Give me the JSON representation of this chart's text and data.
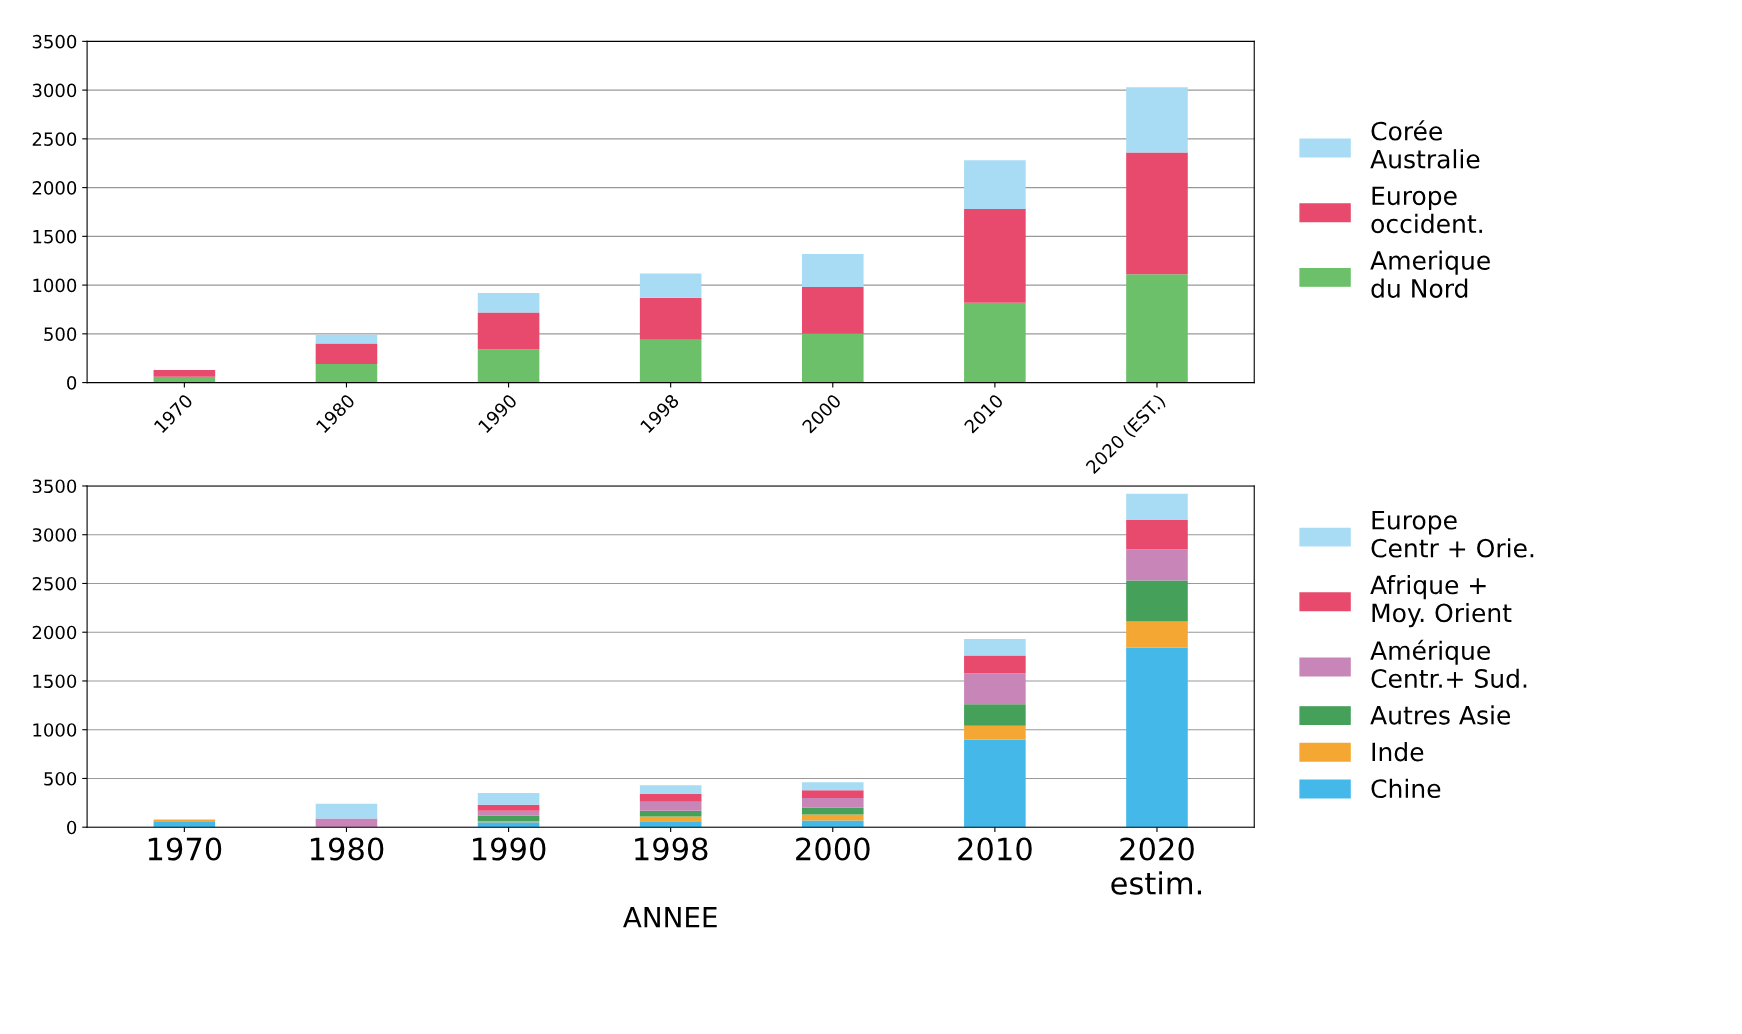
{
  "chart_data": [
    {
      "type": "bar",
      "stacked": true,
      "categories": [
        "1970",
        "1980",
        "1990",
        "1998",
        "2000",
        "2010",
        "2020 (EST.)"
      ],
      "ylim": [
        0,
        3500
      ],
      "yticks": [
        0,
        500,
        1000,
        1500,
        2000,
        2500,
        3000,
        3500
      ],
      "grid": "y",
      "legend": "right",
      "series": [
        {
          "name": "Amerique\ndu Nord",
          "color": "#6cc06a",
          "values": [
            60,
            190,
            340,
            440,
            500,
            820,
            1110
          ]
        },
        {
          "name": "Europe\noccident.",
          "color": "#e84a6e",
          "values": [
            70,
            210,
            380,
            430,
            480,
            960,
            1250
          ]
        },
        {
          "name": "Corée\nAustralie",
          "color": "#a8dcf5",
          "values": [
            0,
            90,
            200,
            250,
            340,
            500,
            670
          ]
        }
      ]
    },
    {
      "type": "bar",
      "stacked": true,
      "categories": [
        "1970",
        "1980",
        "1990",
        "1998",
        "2000",
        "2010",
        "2020\nestim."
      ],
      "ylim": [
        0,
        3500
      ],
      "yticks": [
        0,
        500,
        1000,
        1500,
        2000,
        2500,
        3000,
        3500
      ],
      "grid": "y",
      "legend": "right",
      "xlabel": "ANNEE",
      "series": [
        {
          "name": "Chine",
          "color": "#45b8ea",
          "values": [
            60,
            0,
            50,
            60,
            70,
            900,
            1840
          ]
        },
        {
          "name": "Inde",
          "color": "#f5a733",
          "values": [
            20,
            0,
            10,
            50,
            60,
            140,
            270
          ]
        },
        {
          "name": "Autres Asie",
          "color": "#45a05a",
          "values": [
            0,
            0,
            60,
            60,
            70,
            220,
            420
          ]
        },
        {
          "name": "Amérique\nCentr.+ Sud.",
          "color": "#c885b8",
          "values": [
            0,
            90,
            50,
            90,
            100,
            320,
            320
          ]
        },
        {
          "name": "Afrique +\nMoy. Orient",
          "color": "#e84a6e",
          "values": [
            0,
            0,
            60,
            80,
            80,
            180,
            300
          ]
        },
        {
          "name": "Europe\nCentr + Orie.",
          "color": "#a8dcf5",
          "values": [
            0,
            150,
            120,
            90,
            80,
            170,
            270
          ]
        }
      ]
    }
  ]
}
